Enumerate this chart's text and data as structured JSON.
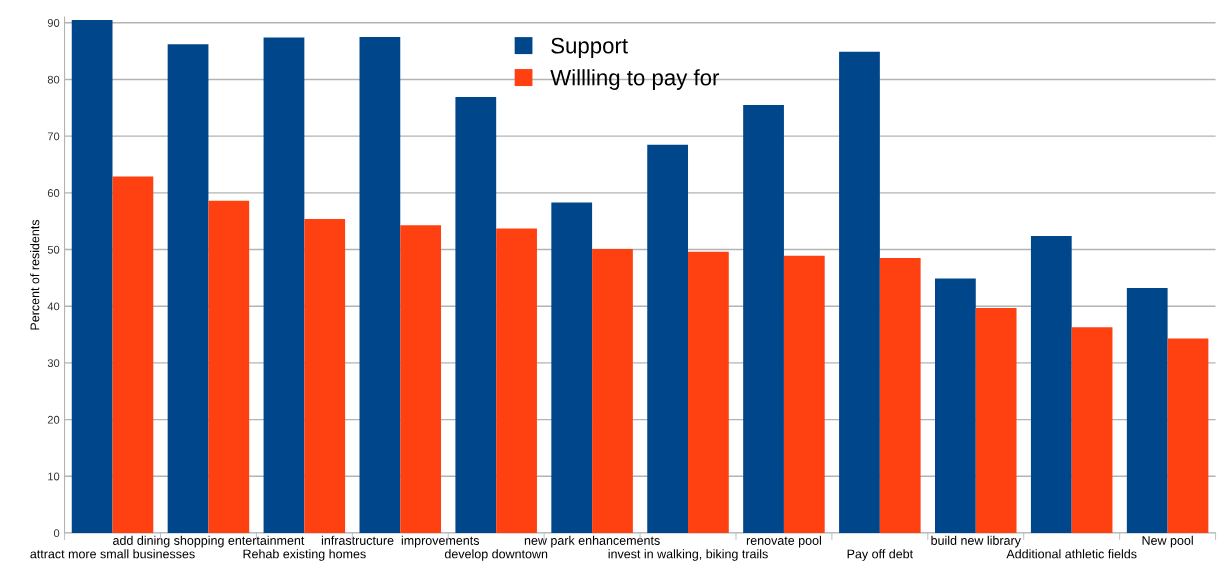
{
  "chart_data": {
    "type": "bar",
    "ylabel": "Percent of residents",
    "categories": [
      "attract more small businesses",
      "add dining shopping entertainment",
      "Rehab existing homes",
      "infrastructure  improvements",
      "develop downtown",
      "new park enhancements",
      "invest in walking, biking trails",
      "renovate pool",
      "Pay off debt",
      "build new library",
      "Additional athletic fields",
      "New pool"
    ],
    "series": [
      {
        "name": "Support",
        "color": "#00468b",
        "values": [
          90.5,
          86.2,
          87.4,
          87.5,
          76.9,
          58.3,
          68.5,
          75.5,
          84.9,
          44.9,
          52.4,
          43.2
        ]
      },
      {
        "name": "Willling to pay for",
        "color": "#ff4011",
        "values": [
          62.9,
          58.6,
          55.4,
          54.3,
          53.7,
          50.1,
          49.6,
          48.9,
          48.5,
          39.7,
          36.3,
          34.3
        ]
      }
    ],
    "ylim": [
      0,
      91
    ],
    "yticks": [
      0,
      10,
      20,
      30,
      40,
      50,
      60,
      70,
      80,
      90
    ],
    "grid": "y",
    "legend": "top"
  }
}
